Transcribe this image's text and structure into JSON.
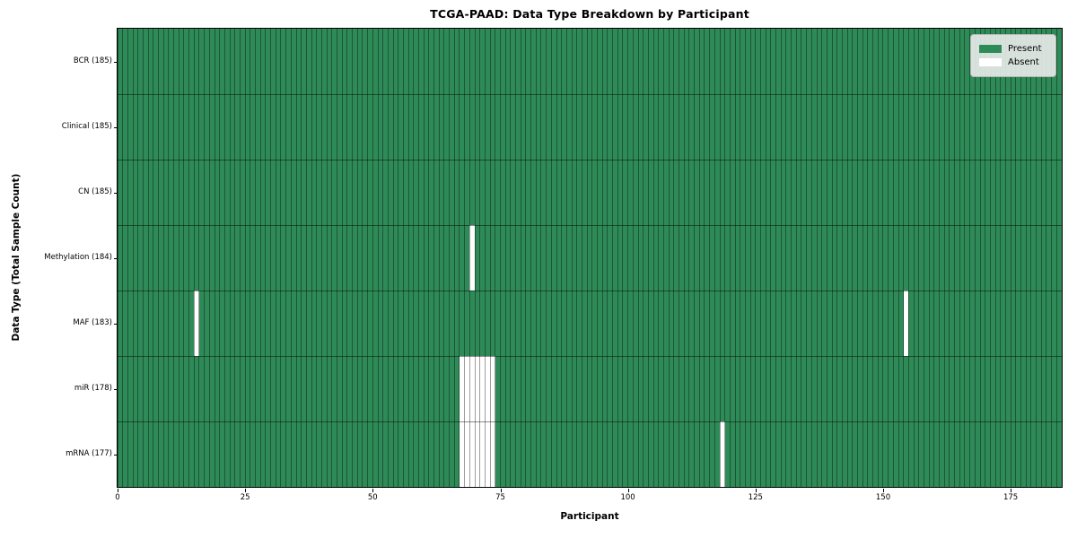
{
  "colors": {
    "present": "#2e8b57",
    "absent": "#ffffff",
    "grid_line": "rgba(0,0,0,0.38)",
    "row_separator": "rgba(0,0,0,0.45)",
    "spine": "#000000",
    "legend_bg": "#ebebeb"
  },
  "chart_data": {
    "type": "heatmap",
    "title": "TCGA-PAAD: Data Type Breakdown by Participant",
    "xlabel": "Participant",
    "ylabel": "Data Type (Total Sample Count)",
    "n_participants": 185,
    "xlim": [
      0,
      185
    ],
    "x_ticks": [
      0,
      25,
      50,
      75,
      100,
      125,
      150,
      175
    ],
    "legend": [
      "Present",
      "Absent"
    ],
    "legend_position": "upper right",
    "grid": true,
    "rows": [
      {
        "label": "BCR",
        "total": 185,
        "display": "BCR (185)",
        "absent_participants": []
      },
      {
        "label": "Clinical",
        "total": 185,
        "display": "Clinical (185)",
        "absent_participants": []
      },
      {
        "label": "CN",
        "total": 185,
        "display": "CN (185)",
        "absent_participants": []
      },
      {
        "label": "Methylation",
        "total": 184,
        "display": "Methylation (184)",
        "absent_participants": [
          69
        ]
      },
      {
        "label": "MAF",
        "total": 183,
        "display": "MAF (183)",
        "absent_participants": [
          15,
          154
        ]
      },
      {
        "label": "miR",
        "total": 178,
        "display": "miR (178)",
        "absent_participants": [
          67,
          68,
          69,
          70,
          71,
          72,
          73
        ]
      },
      {
        "label": "mRNA",
        "total": 177,
        "display": "mRNA (177)",
        "absent_participants": [
          67,
          68,
          69,
          70,
          71,
          72,
          73,
          118
        ]
      }
    ]
  }
}
